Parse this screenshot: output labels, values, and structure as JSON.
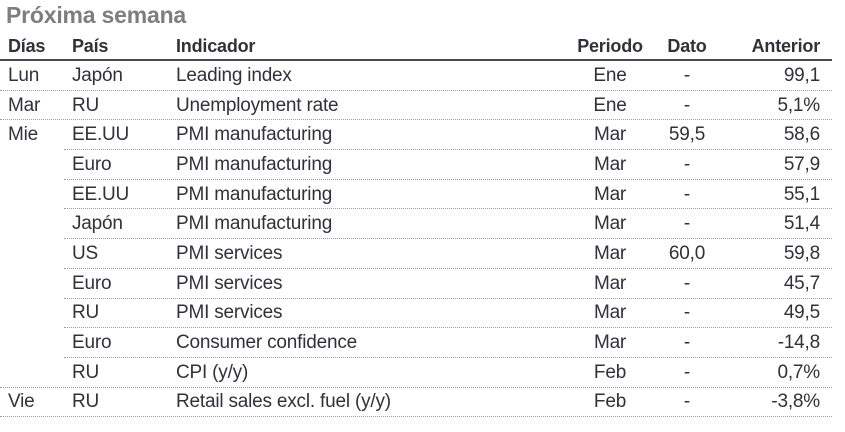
{
  "title": "Próxima semana",
  "chart_data": {
    "type": "table",
    "title": "Próxima semana",
    "columns": [
      "Días",
      "País",
      "Indicador",
      "Periodo",
      "Dato",
      "Anterior"
    ],
    "rows": [
      [
        "Lun",
        "Japón",
        "Leading index",
        "Ene",
        "-",
        "99,1"
      ],
      [
        "Mar",
        "RU",
        "Unemployment rate",
        "Ene",
        "-",
        "5,1%"
      ],
      [
        "Mie",
        "EE.UU",
        "PMI manufacturing",
        "Mar",
        "59,5",
        "58,6"
      ],
      [
        "",
        "Euro",
        "PMI manufacturing",
        "Mar",
        "-",
        "57,9"
      ],
      [
        "",
        "EE.UU",
        "PMI manufacturing",
        "Mar",
        "-",
        "55,1"
      ],
      [
        "",
        "Japón",
        "PMI manufacturing",
        "Mar",
        "-",
        "51,4"
      ],
      [
        "",
        "US",
        "PMI services",
        "Mar",
        "60,0",
        "59,8"
      ],
      [
        "",
        "Euro",
        "PMI services",
        "Mar",
        "-",
        "45,7"
      ],
      [
        "",
        "RU",
        "PMI services",
        "Mar",
        "-",
        "49,5"
      ],
      [
        "",
        "Euro",
        "Consumer confidence",
        "Mar",
        "-",
        "-14,8"
      ],
      [
        "",
        "RU",
        "CPI (y/y)",
        "Feb",
        "-",
        "0,7%"
      ],
      [
        "Vie",
        "RU",
        "Retail sales excl. fuel (y/y)",
        "Feb",
        "-",
        "-3,8%"
      ]
    ]
  },
  "colors": {
    "title_text": "#7d7e81",
    "body_text": "#31313a",
    "header_rule": "#4a4a4f",
    "row_separator": "#9e9ea2",
    "background": "#ffffff"
  }
}
